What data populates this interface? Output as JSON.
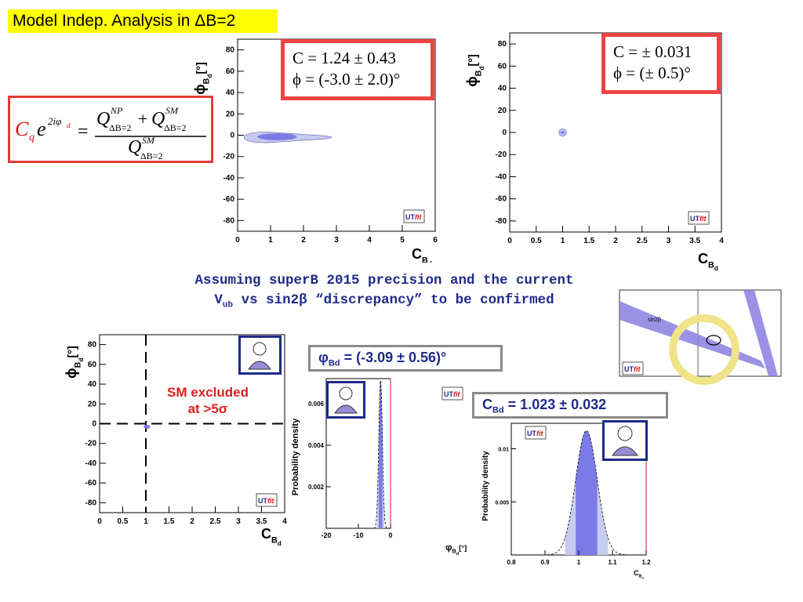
{
  "title": "Model Indep. Analysis  in ΔB=2",
  "formula": {
    "lhs": "C",
    "lhs_sub": "q",
    "exp": "e",
    "exp_sup": "2iφ",
    "exp_sup_sub": "d",
    "eq": "=",
    "num_q1": "Q",
    "num_sup1": "NP",
    "num_sub1": "ΔB=2",
    "plus": "+",
    "num_q2": "Q",
    "num_sup2": "SM",
    "num_sub2": "ΔB=2",
    "den_q": "Q",
    "den_sup": "SM",
    "den_sub": "ΔB=2"
  },
  "box_current": {
    "line1": "C = 1.24 ± 0.43",
    "line2": "ϕ  = (-3.0 ± 2.0)°"
  },
  "box_future": {
    "line1": "C = ± 0.031",
    "line2": "ϕ  = (± 0.5)°"
  },
  "assumption": {
    "line1": "Assuming superB 2015 precision and the current",
    "line2_pre": "V",
    "line2_sub": "ub",
    "line2_post": " vs sin2β “discrepancy” to be confirmed"
  },
  "sm_excluded": {
    "line1": "SM excluded",
    "line2": "at >5σ"
  },
  "phi_result": {
    "pre": "φ",
    "sub": "Bd",
    "post": " = (-3.09 ± 0.56)°"
  },
  "c_result": {
    "pre": "C",
    "sub": "Bd",
    "post": " = 1.023 ± 0.032"
  },
  "logo": {
    "ut": "UT",
    "fit": "fit"
  },
  "inset": {
    "label": "sin2β"
  },
  "colors": {
    "contour_dark": "#7b7be8",
    "contour_light": "#c8cbf0",
    "accent_red": "#ef4444",
    "navy": "#1f2a8a"
  },
  "chart_data": [
    {
      "type": "scatter",
      "id": "current_2d",
      "xlabel": "C",
      "xlabel_sub": "B",
      "xlabel_subsub": "d",
      "ylabel": "ϕ",
      "ylabel_sub": "B",
      "ylabel_subsub": "d",
      "ylabel_unit": "[°]",
      "xlim": [
        0,
        6
      ],
      "ylim": [
        -90,
        90
      ],
      "xticks": [
        "0",
        "1",
        "2",
        "3",
        "4",
        "5",
        "6"
      ],
      "yticks": [
        "-80",
        "-60",
        "-40",
        "-20",
        "0",
        "20",
        "40",
        "60",
        "80"
      ],
      "regions": [
        {
          "level": "95%",
          "x_range": [
            0.2,
            3.1
          ],
          "y_range": [
            -7,
            3
          ]
        },
        {
          "level": "68%",
          "x_range": [
            0.6,
            1.8
          ],
          "y_range": [
            -4,
            1
          ]
        }
      ]
    },
    {
      "type": "scatter",
      "id": "future_2d",
      "xlabel": "C",
      "xlabel_sub": "B",
      "xlabel_subsub": "d",
      "ylabel": "ϕ",
      "ylabel_sub": "B",
      "ylabel_subsub": "d",
      "ylabel_unit": "[°]",
      "xlim": [
        0,
        4
      ],
      "ylim": [
        -90,
        90
      ],
      "xticks": [
        "0",
        "0.5",
        "1",
        "1.5",
        "2",
        "2.5",
        "3",
        "3.5",
        "4"
      ],
      "yticks": [
        "-80",
        "-60",
        "-40",
        "-20",
        "0",
        "20",
        "40",
        "60",
        "80"
      ],
      "regions": [
        {
          "level": "95%",
          "center": [
            1.0,
            0
          ],
          "x_halfwidth": 0.07,
          "y_halfwidth": 2.5
        }
      ]
    },
    {
      "type": "scatter",
      "id": "superb_2d",
      "xlabel": "C",
      "xlabel_sub": "B",
      "xlabel_subsub": "d",
      "ylabel": "ϕ",
      "ylabel_sub": "B",
      "ylabel_subsub": "d",
      "ylabel_unit": "[°]",
      "xlim": [
        0,
        4
      ],
      "ylim": [
        -90,
        90
      ],
      "xticks": [
        "0",
        "0.5",
        "1",
        "1.5",
        "2",
        "2.5",
        "3",
        "3.5",
        "4"
      ],
      "yticks": [
        "-80",
        "-60",
        "-40",
        "-20",
        "0",
        "20",
        "40",
        "60",
        "80"
      ],
      "sm_point": [
        1,
        0
      ],
      "regions": [
        {
          "level": "95%",
          "center": [
            1.023,
            -3.09
          ],
          "x_halfwidth": 0.07,
          "y_halfwidth": 1.5
        }
      ]
    },
    {
      "type": "area",
      "id": "phi_pdf",
      "xlabel": "φ",
      "xlabel_sub": "B",
      "xlabel_subsub": "d",
      "xlabel_unit": "[°]",
      "ylabel": "Probability density",
      "xlim": [
        -20,
        0
      ],
      "ylim": [
        0,
        0.0072
      ],
      "xticks": [
        "-20",
        "-10",
        "0"
      ],
      "yticks": [
        "0.002",
        "0.004",
        "0.006"
      ],
      "mean": -3.09,
      "sigma": 0.56,
      "peak": 0.0071
    },
    {
      "type": "area",
      "id": "c_pdf",
      "xlabel": "C",
      "xlabel_sub": "B",
      "xlabel_subsub": "d",
      "ylabel": "Probability density",
      "xlim": [
        0.8,
        1.2
      ],
      "ylim": [
        0,
        0.0124
      ],
      "xticks": [
        "0.8",
        "0.9",
        "1",
        "1.1",
        "1.2"
      ],
      "yticks": [
        "0.005",
        "0.01"
      ],
      "mean": 1.023,
      "sigma": 0.032,
      "peak": 0.0117
    }
  ]
}
